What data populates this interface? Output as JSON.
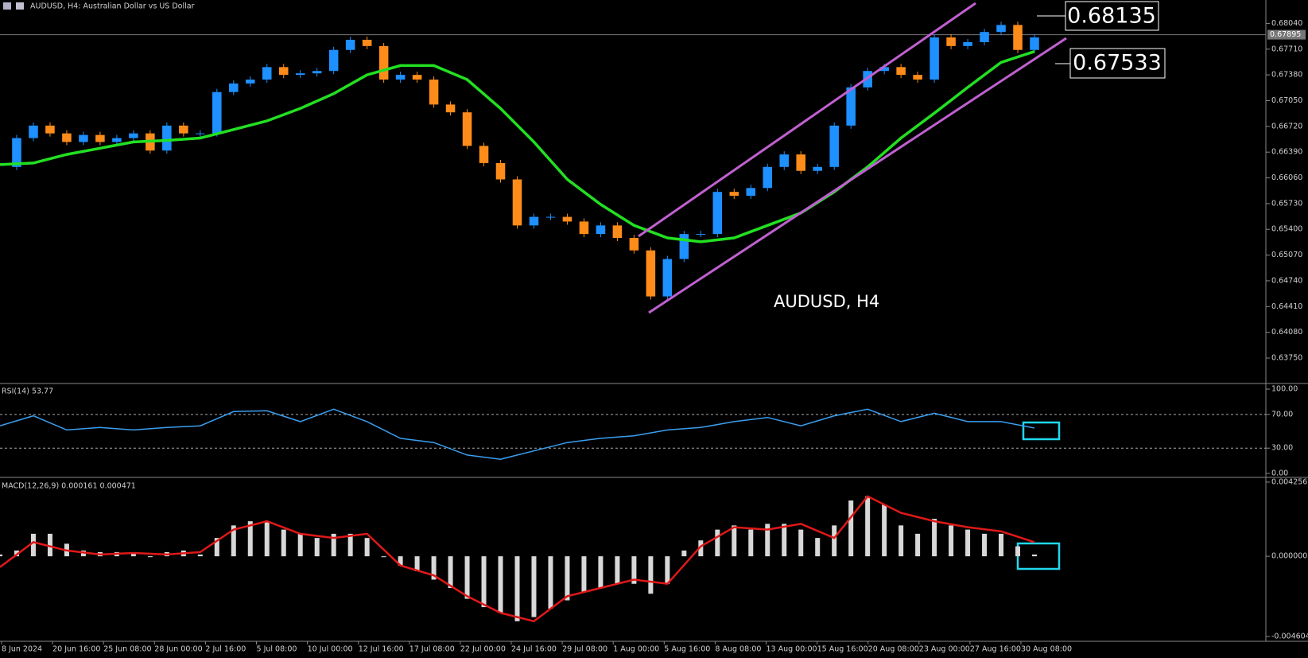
{
  "header": {
    "title": "AUDUSD, H4:  Australian Dollar vs US Dollar"
  },
  "price_panel": {
    "ylim": [
      0.63434,
      0.6834
    ],
    "yticks": [
      {
        "value": 0.6804,
        "label": "0.68040"
      },
      {
        "value": 0.6771,
        "label": "0.67710"
      },
      {
        "value": 0.6738,
        "label": "0.67380"
      },
      {
        "value": 0.6705,
        "label": "0.67050"
      },
      {
        "value": 0.6672,
        "label": "0.66720"
      },
      {
        "value": 0.6639,
        "label": "0.66390"
      },
      {
        "value": 0.6606,
        "label": "0.66060"
      },
      {
        "value": 0.6573,
        "label": "0.65730"
      },
      {
        "value": 0.654,
        "label": "0.65400"
      },
      {
        "value": 0.6507,
        "label": "0.65070"
      },
      {
        "value": 0.6474,
        "label": "0.64740"
      },
      {
        "value": 0.6441,
        "label": "0.64410"
      },
      {
        "value": 0.6408,
        "label": "0.64080"
      },
      {
        "value": 0.6375,
        "label": "0.63750"
      }
    ],
    "current_price": {
      "value": 0.67895,
      "label": "0.67895"
    },
    "closes": [
      0.662,
      0.6657,
      0.6673,
      0.6663,
      0.6652,
      0.6661,
      0.6652,
      0.6657,
      0.6663,
      0.6641,
      0.6673,
      0.6663,
      0.6663,
      0.6716,
      0.6727,
      0.6732,
      0.6748,
      0.6738,
      0.674,
      0.6743,
      0.677,
      0.6783,
      0.6775,
      0.6732,
      0.6738,
      0.6732,
      0.67,
      0.669,
      0.6647,
      0.6625,
      0.6604,
      0.6545,
      0.6556,
      0.6556,
      0.655,
      0.6534,
      0.6545,
      0.6529,
      0.6513,
      0.6454,
      0.6502,
      0.6534,
      0.6534,
      0.6588,
      0.6583,
      0.6593,
      0.662,
      0.6636,
      0.6615,
      0.662,
      0.6673,
      0.6722,
      0.6743,
      0.6748,
      0.6738,
      0.6732,
      0.6786,
      0.6775,
      0.678,
      0.6793,
      0.6802,
      0.677,
      0.6786
    ],
    "moving_average": [
      0.6623,
      0.6625,
      0.6636,
      0.6644,
      0.6652,
      0.6654,
      0.6657,
      0.6668,
      0.6679,
      0.6695,
      0.6714,
      0.6738,
      0.675,
      0.675,
      0.6732,
      0.6695,
      0.6652,
      0.6604,
      0.6572,
      0.6545,
      0.6529,
      0.6524,
      0.6529,
      0.6545,
      0.6561,
      0.6588,
      0.662,
      0.6657,
      0.6689,
      0.6722,
      0.6754,
      0.6768
    ],
    "annotations": [
      "0.68135",
      "0.67533",
      "AUDUSD, H4"
    ]
  },
  "rsi_panel": {
    "title": "RSI(14) 53.77",
    "ylim": [
      -4.7,
      103.8
    ],
    "yticks": [
      {
        "value": 100,
        "label": "100.00"
      },
      {
        "value": 70,
        "label": "70.00"
      },
      {
        "value": 30,
        "label": "30.00"
      },
      {
        "value": 0,
        "label": "0.00"
      }
    ],
    "levels": [
      70,
      30
    ],
    "values": [
      56.4,
      68.3,
      51.5,
      54.5,
      51.5,
      54.5,
      56.4,
      73.3,
      74.3,
      61.4,
      76.2,
      61.4,
      41.6,
      36.6,
      21.8,
      16.8,
      26.7,
      36.6,
      41.6,
      44.6,
      51.5,
      54.5,
      61.4,
      66.3,
      56.4,
      68.3,
      76.2,
      61.4,
      71.3,
      61.4,
      61.4,
      53.8
    ]
  },
  "macd_panel": {
    "title": "MACD(12,26,9) 0.000161 0.000471",
    "ylim": [
      -0.00488,
      0.00439
    ],
    "yticks": [
      0.004256,
      {
        "value": 0,
        "label": "0.000000"
      },
      -0.004604
    ],
    "histogram": [
      0.0001,
      0.00033,
      0.00129,
      0.00129,
      0.00072,
      0.00033,
      0.00024,
      0.00024,
      0.00019,
      -5e-05,
      0.00024,
      0.00033,
      0.0001,
      0.00105,
      0.00177,
      0.00201,
      0.00201,
      0.00153,
      0.00129,
      0.00105,
      0.00129,
      0.00129,
      0.00105,
      -5e-05,
      -0.00053,
      -0.00086,
      -0.00134,
      -0.00182,
      -0.00244,
      -0.00292,
      -0.00325,
      -0.00373,
      -0.00349,
      -0.00301,
      -0.00253,
      -0.00206,
      -0.00182,
      -0.00158,
      -0.00158,
      -0.00215,
      -0.00158,
      0.00033,
      0.00091,
      0.00153,
      0.00177,
      0.00153,
      0.00186,
      0.00186,
      0.00153,
      0.00105,
      0.00177,
      0.0032,
      0.00344,
      0.00296,
      0.00177,
      0.00129,
      0.00215,
      0.00177,
      0.00153,
      0.00129,
      0.00129,
      0.00057,
      0.0001
    ],
    "signal": [
      -0.00062,
      0.00081,
      0.00033,
      0.0001,
      0.00019,
      0.0001,
      0.00024,
      0.00153,
      0.00201,
      0.00129,
      0.00105,
      0.00129,
      -0.00053,
      -0.0011,
      -0.00229,
      -0.00325,
      -0.00373,
      -0.00229,
      -0.00182,
      -0.00134,
      -0.00158,
      0.00057,
      0.00167,
      0.00153,
      0.00186,
      0.00105,
      0.00344,
      0.00249,
      0.00201,
      0.00167,
      0.00143,
      0.00081
    ]
  },
  "time_axis": [
    "8 Jun 2024",
    "20 Jun 16:00",
    "25 Jun 08:00",
    "28 Jun 00:00",
    "2 Jul 16:00",
    "5 Jul 08:00",
    "10 Jul 00:00",
    "12 Jul 16:00",
    "17 Jul 08:00",
    "22 Jul 00:00",
    "24 Jul 16:00",
    "29 Jul 08:00",
    "1 Aug 00:00",
    "5 Aug 16:00",
    "8 Aug 08:00",
    "13 Aug 00:00",
    "15 Aug 16:00",
    "20 Aug 08:00",
    "23 Aug 00:00",
    "27 Aug 16:00",
    "30 Aug 08:00"
  ]
}
